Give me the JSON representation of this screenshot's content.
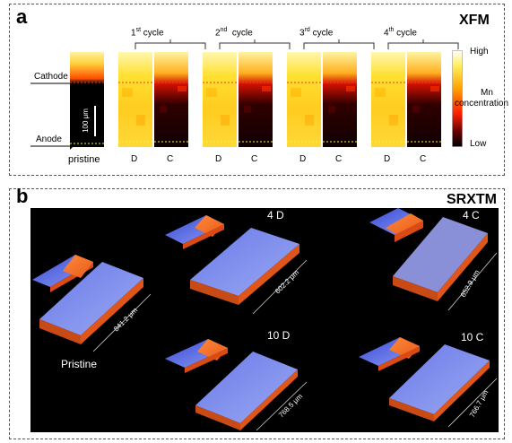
{
  "panel_a": {
    "letter": "a",
    "title": "XFM",
    "cathode_label": "Cathode",
    "anode_label": "Anode",
    "scale_label": "100 μm",
    "pristine_label": "pristine",
    "cycles": [
      {
        "num": "1",
        "suffix": "st",
        "word": " cycle",
        "d": "D",
        "c": "C"
      },
      {
        "num": "2",
        "suffix": "nd",
        "word": "  cycle",
        "d": "D",
        "c": "C"
      },
      {
        "num": "3",
        "suffix": "rd",
        "word": " cycle",
        "d": "D",
        "c": "C"
      },
      {
        "num": "4",
        "suffix": "th",
        "word": " cycle",
        "d": "D",
        "c": "C"
      }
    ],
    "colorbar": {
      "high": "High",
      "label_line1": "Mn",
      "label_line2": "concentration",
      "low": "Low"
    }
  },
  "panel_b": {
    "letter": "b",
    "title": "SRXTM",
    "samples": [
      {
        "name": "Pristine",
        "dim": "841.2 μm"
      },
      {
        "name": "4 D",
        "dim": "602.2 μm"
      },
      {
        "name": "4 C",
        "dim": "652.9 μm"
      },
      {
        "name": "10 D",
        "dim": "768.5 μm"
      },
      {
        "name": "10 C",
        "dim": "766.7 μm"
      }
    ]
  }
}
